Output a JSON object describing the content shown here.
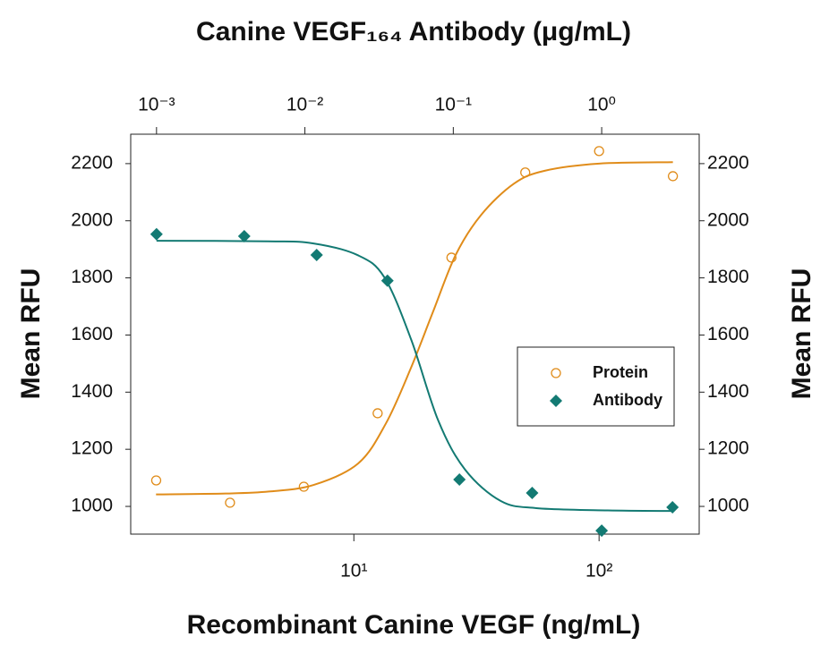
{
  "chart_data": {
    "type": "scatter",
    "title": "Canine VEGF₁₆₄ Antibody (μg/mL)",
    "xlabel": "Recombinant Canine VEGF (ng/mL)",
    "ylabel": "Mean RFU",
    "y2label": "Mean RFU",
    "xscale": "log",
    "x2scale": "log",
    "xlim": [
      1.23,
      256
    ],
    "xticks": [
      {
        "value": 10,
        "label": "10¹"
      },
      {
        "value": 100,
        "label": "10²"
      }
    ],
    "x2lim": [
      0.00067,
      4.54
    ],
    "x2ticks": [
      {
        "value": 0.001,
        "label": "10⁻³"
      },
      {
        "value": 0.01,
        "label": "10⁻²"
      },
      {
        "value": 0.1,
        "label": "10⁻¹"
      },
      {
        "value": 1,
        "label": "10⁰"
      }
    ],
    "ylim": [
      903,
      2303
    ],
    "yticks": [
      1000,
      1200,
      1400,
      1600,
      1800,
      2000,
      2200
    ],
    "y2lim": [
      903,
      2303
    ],
    "y2ticks": [
      1000,
      1200,
      1400,
      1600,
      1800,
      2000,
      2200
    ],
    "legend": "right",
    "series": [
      {
        "name": "Protein",
        "color": "#e08c1a",
        "marker": "circle",
        "axis": "x",
        "x": [
          1.5625,
          3.125,
          6.25,
          12.5,
          25,
          50,
          100,
          200
        ],
        "values": [
          1091,
          1013,
          1069,
          1326,
          1871,
          2169,
          2244,
          2156
        ],
        "fit": {
          "x": [
            1.56,
            3,
            4.5,
            6.85,
            10.4,
            13.5,
            17,
            21,
            26,
            33,
            45,
            60,
            100,
            200
          ],
          "values": [
            1042,
            1045,
            1052,
            1075,
            1150,
            1290,
            1480,
            1680,
            1880,
            2020,
            2130,
            2175,
            2200,
            2205
          ]
        }
      },
      {
        "name": "Antibody",
        "color": "#137a73",
        "marker": "diamond",
        "axis": "x2",
        "x": [
          0.001,
          0.0039,
          0.012,
          0.036,
          0.11,
          0.34,
          1.0,
          3.0
        ],
        "values": [
          1953,
          1946,
          1880,
          1790,
          1094,
          1047,
          915,
          997
        ],
        "fit": {
          "x": [
            0.001,
            0.00566,
            0.0113,
            0.0226,
            0.0343,
            0.0521,
            0.0791,
            0.12,
            0.209,
            0.363,
            1.1,
            2.99
          ],
          "values": [
            1930,
            1928,
            1921,
            1880,
            1802,
            1583,
            1301,
            1129,
            1019,
            994,
            986,
            984
          ]
        }
      }
    ]
  }
}
